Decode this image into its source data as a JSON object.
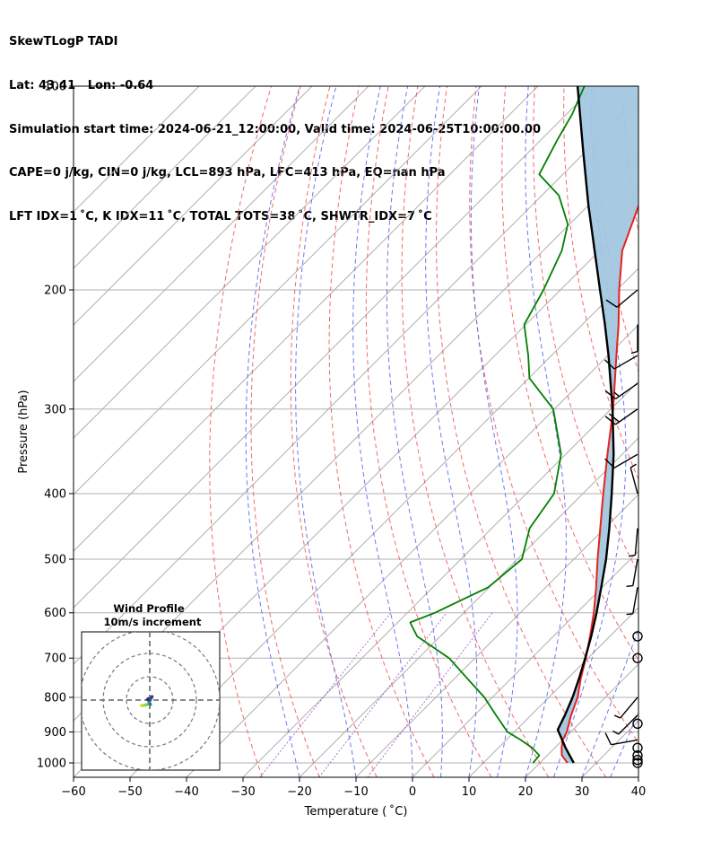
{
  "header": {
    "line1": "SkewTLogP TADI",
    "line2": "Lat: 43.41   Lon: -0.64",
    "line3": "Simulation start time: 2024-06-21_12:00:00, Valid time: 2024-06-25T10:00:00.00",
    "line4": "CAPE=0 j/kg, CIN=0 j/kg, LCL=893 hPa, LFC=413 hPa, EQ=nan hPa",
    "line5": "LFT IDX=1 ˚C, K IDX=11 ˚C, TOTAL TOTS=38 ˚C, SHWTR_IDX=7 ˚C"
  },
  "chart_data": {
    "type": "line",
    "subtype": "skew-t-log-p",
    "xlabel": "Temperature ( ˚C)",
    "ylabel": "Pressure (hPa)",
    "xlim": [
      -60,
      40
    ],
    "ylim": [
      1050,
      100
    ],
    "yscale": "log",
    "x_ticks": [
      "−60",
      "−50",
      "−40",
      "−30",
      "−20",
      "−10",
      "0",
      "10",
      "20",
      "30",
      "40"
    ],
    "x_tick_values": [
      -60,
      -50,
      -40,
      -30,
      -20,
      -10,
      0,
      10,
      20,
      30,
      40
    ],
    "y_ticks": [
      "100",
      "200",
      "300",
      "400",
      "500",
      "600",
      "700",
      "800",
      "900",
      "1000"
    ],
    "y_tick_values": [
      100,
      200,
      300,
      400,
      500,
      600,
      700,
      800,
      900,
      1000
    ],
    "grid": true,
    "series": [
      {
        "role": "temperature",
        "color": "#e8211c",
        "points": [
          [
            1000,
            24.9
          ],
          [
            975,
            22.6
          ],
          [
            950,
            21.2
          ],
          [
            925,
            20.0
          ],
          [
            900,
            19.3
          ],
          [
            850,
            17.1
          ],
          [
            800,
            15.1
          ],
          [
            750,
            12.3
          ],
          [
            700,
            9.6
          ],
          [
            650,
            6.5
          ],
          [
            600,
            3.0
          ],
          [
            550,
            -1.1
          ],
          [
            500,
            -5.8
          ],
          [
            450,
            -10.8
          ],
          [
            400,
            -16.4
          ],
          [
            350,
            -22.6
          ],
          [
            300,
            -29.6
          ],
          [
            250,
            -38.5
          ],
          [
            225,
            -43.6
          ],
          [
            200,
            -49.6
          ],
          [
            175,
            -56.0
          ],
          [
            150,
            -61.1
          ],
          [
            135,
            -63.6
          ],
          [
            120,
            -64.8
          ],
          [
            110,
            -63.0
          ],
          [
            100,
            -62.0
          ]
        ]
      },
      {
        "role": "dewpoint",
        "color": "#008000",
        "points": [
          [
            1000,
            18.8
          ],
          [
            975,
            18.6
          ],
          [
            950,
            16.0
          ],
          [
            925,
            12.6
          ],
          [
            900,
            8.8
          ],
          [
            850,
            3.8
          ],
          [
            800,
            -1.4
          ],
          [
            750,
            -7.8
          ],
          [
            700,
            -14.6
          ],
          [
            650,
            -24.1
          ],
          [
            620,
            -27.8
          ],
          [
            600,
            -25.1
          ],
          [
            550,
            -20.2
          ],
          [
            500,
            -19.2
          ],
          [
            450,
            -23.3
          ],
          [
            400,
            -25.1
          ],
          [
            350,
            -30.8
          ],
          [
            300,
            -40.2
          ],
          [
            270,
            -49.9
          ],
          [
            250,
            -54.1
          ],
          [
            225,
            -60.3
          ],
          [
            200,
            -63.0
          ],
          [
            175,
            -66.7
          ],
          [
            160,
            -70.3
          ],
          [
            145,
            -77.0
          ],
          [
            135,
            -84.2
          ],
          [
            120,
            -87.1
          ],
          [
            110,
            -89.0
          ],
          [
            100,
            -91.8
          ]
        ]
      },
      {
        "role": "parcel",
        "color": "#000000",
        "points": [
          [
            1000,
            26.0
          ],
          [
            950,
            21.9
          ],
          [
            893,
            17.3
          ],
          [
            850,
            16.0
          ],
          [
            800,
            14.2
          ],
          [
            750,
            12.0
          ],
          [
            700,
            9.5
          ],
          [
            650,
            6.7
          ],
          [
            600,
            3.5
          ],
          [
            550,
            -0.2
          ],
          [
            500,
            -4.3
          ],
          [
            450,
            -9.2
          ],
          [
            400,
            -14.9
          ],
          [
            350,
            -21.5
          ],
          [
            300,
            -29.7
          ],
          [
            250,
            -39.9
          ],
          [
            225,
            -46.0
          ],
          [
            200,
            -53.0
          ],
          [
            175,
            -60.9
          ],
          [
            150,
            -70.0
          ],
          [
            125,
            -80.4
          ],
          [
            100,
            -93.0
          ]
        ]
      }
    ],
    "cin_cape_shading_color": "#a2c6e0",
    "wind_barbs": [
      {
        "p": 1000,
        "calm": true
      },
      {
        "p": 990,
        "calm": true
      },
      {
        "p": 975,
        "calm": true
      },
      {
        "p": 950,
        "calm": true
      },
      {
        "p": 925,
        "dir": 260,
        "kt": 10
      },
      {
        "p": 875,
        "calm": true
      },
      {
        "p": 850,
        "dir": 225,
        "kt": 5
      },
      {
        "p": 800,
        "dir": 220,
        "kt": 5
      },
      {
        "p": 700,
        "calm": true
      },
      {
        "p": 650,
        "calm": true
      },
      {
        "p": 550,
        "dir": 190,
        "kt": 5
      },
      {
        "p": 500,
        "dir": 190,
        "kt": 5
      },
      {
        "p": 450,
        "dir": 185,
        "kt": 5
      },
      {
        "p": 400,
        "dir": 345,
        "kt": 5
      },
      {
        "p": 350,
        "dir": 240,
        "kt": 10
      },
      {
        "p": 300,
        "dir": 235,
        "kt": 20
      },
      {
        "p": 275,
        "dir": 235,
        "kt": 15
      },
      {
        "p": 250,
        "dir": 240,
        "kt": 10
      },
      {
        "p": 225,
        "dir": 180,
        "kt": 5
      },
      {
        "p": 200,
        "dir": 230,
        "kt": 10
      }
    ],
    "hodograph": {
      "title": "Wind Profile",
      "subtitle": "10m/s increment",
      "uv": [
        [
          -3.6,
          -2.3
        ],
        [
          -2.6,
          -2.3
        ],
        [
          -1.6,
          -2.0
        ],
        [
          -0.6,
          -1.8
        ],
        [
          0.3,
          -1.9
        ],
        [
          0.0,
          -1.3
        ],
        [
          -0.5,
          -0.4
        ],
        [
          -0.5,
          0.0
        ],
        [
          -1.0,
          0.3
        ],
        [
          -0.6,
          0.6
        ],
        [
          0.2,
          0.0
        ],
        [
          0.4,
          0.7
        ],
        [
          0.6,
          1.2
        ],
        [
          1.0,
          1.5
        ],
        [
          0.8,
          1.0
        ]
      ]
    }
  }
}
